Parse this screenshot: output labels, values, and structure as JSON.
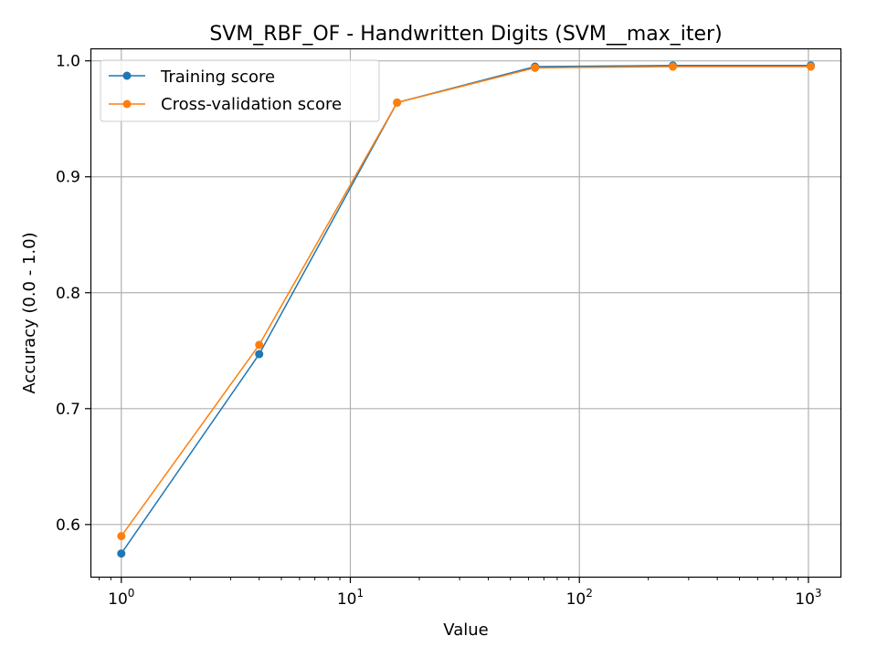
{
  "chart_data": {
    "type": "line",
    "title": "SVM_RBF_OF - Handwritten Digits (SVM__max_iter)",
    "xlabel": "Value",
    "ylabel": "Accuracy (0.0 - 1.0)",
    "xscale": "log",
    "xlim": [
      0.74,
      1380
    ],
    "ylim": [
      0.555,
      1.01
    ],
    "x": [
      1,
      4,
      16,
      64,
      256,
      1024
    ],
    "series": [
      {
        "name": "Training score",
        "color": "#1f77b4",
        "values": [
          0.575,
          0.747,
          0.964,
          0.995,
          0.996,
          0.996
        ]
      },
      {
        "name": "Cross-validation score",
        "color": "#ff7f0e",
        "values": [
          0.59,
          0.755,
          0.964,
          0.994,
          0.995,
          0.995
        ]
      }
    ],
    "x_ticks": [
      {
        "value": 1,
        "base": "10",
        "exp": "0"
      },
      {
        "value": 10,
        "base": "10",
        "exp": "1"
      },
      {
        "value": 100,
        "base": "10",
        "exp": "2"
      },
      {
        "value": 1000,
        "base": "10",
        "exp": "3"
      }
    ],
    "y_ticks": [
      {
        "value": 0.6,
        "label": "0.6"
      },
      {
        "value": 0.7,
        "label": "0.7"
      },
      {
        "value": 0.8,
        "label": "0.8"
      },
      {
        "value": 0.9,
        "label": "0.9"
      },
      {
        "value": 1.0,
        "label": "1.0"
      }
    ],
    "grid": true,
    "legend_position": "upper left"
  }
}
